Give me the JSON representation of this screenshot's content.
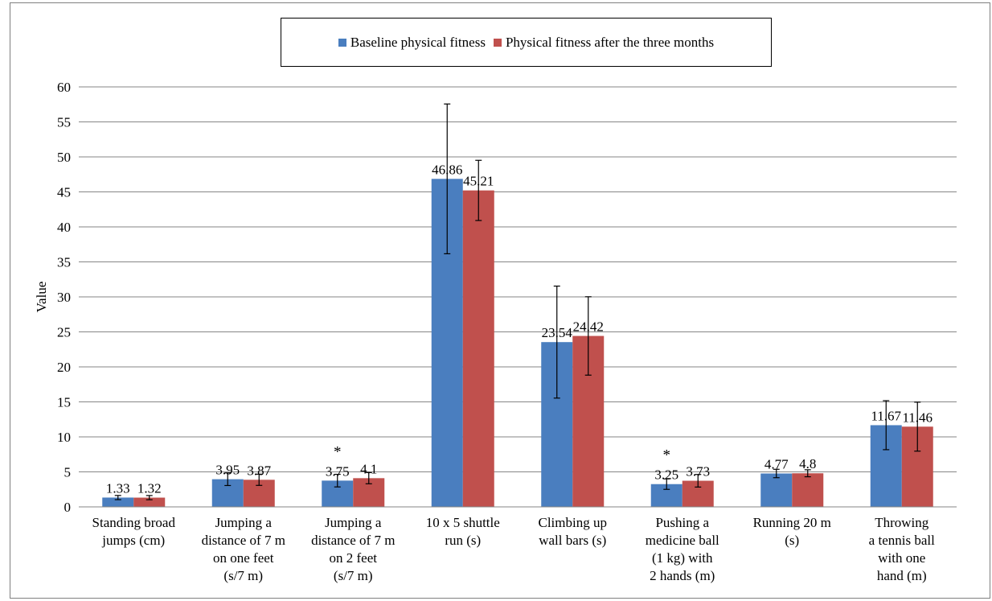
{
  "chart_data": {
    "type": "bar",
    "title": "",
    "xlabel": "",
    "ylabel": "Value",
    "ylim": [
      0,
      60
    ],
    "yticks": [
      0,
      5,
      10,
      15,
      20,
      25,
      30,
      35,
      40,
      45,
      50,
      55,
      60
    ],
    "grid": true,
    "legend_position": "top",
    "categories": [
      [
        "Standing broad",
        "jumps (cm)"
      ],
      [
        "Jumping a",
        "distance of 7 m",
        "on one feet",
        "(s/7 m)"
      ],
      [
        "Jumping a",
        "distance of 7 m",
        "on 2 feet",
        "(s/7 m)"
      ],
      [
        "10 x 5 shuttle",
        "run (s)"
      ],
      [
        "Climbing up",
        "wall bars (s)"
      ],
      [
        "Pushing a",
        "medicine ball",
        "(1 kg) with",
        "2 hands (m)"
      ],
      [
        "Running 20 m",
        "(s)"
      ],
      [
        "Throwing",
        "a tennis ball",
        "with one",
        "hand (m)"
      ]
    ],
    "series": [
      {
        "name": "Baseline physical fitness",
        "color": "#4a7ebf",
        "values": [
          1.33,
          3.95,
          3.75,
          46.86,
          23.54,
          3.25,
          4.77,
          11.67
        ],
        "labels": [
          "1.33",
          "3.95",
          "3.75",
          "46.86",
          "23.54",
          "3.25",
          "4.77",
          "11.67"
        ],
        "error": [
          0.3,
          0.9,
          0.9,
          10.7,
          8.0,
          0.75,
          0.6,
          3.5
        ]
      },
      {
        "name": "Physical fitness after the three months",
        "color": "#c0504d",
        "values": [
          1.32,
          3.87,
          4.1,
          45.21,
          24.42,
          3.73,
          4.8,
          11.46
        ],
        "labels": [
          "1.32",
          "3.87",
          "4.1",
          "45.21",
          "24.42",
          "3.73",
          "4.8",
          "11.46"
        ],
        "error": [
          0.3,
          0.8,
          0.8,
          4.3,
          5.6,
          0.9,
          0.5,
          3.5
        ]
      }
    ],
    "annotations": [
      {
        "category": 2,
        "text": "*"
      },
      {
        "category": 5,
        "text": "*"
      }
    ]
  }
}
